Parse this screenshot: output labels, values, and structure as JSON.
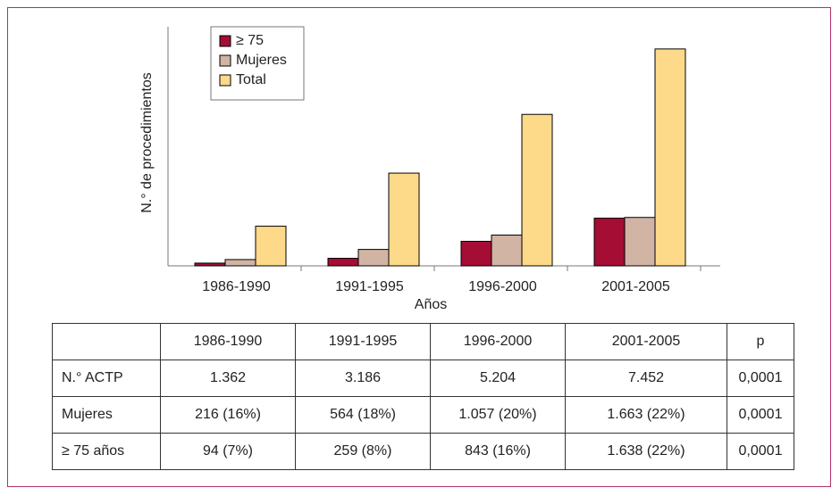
{
  "chart_data": {
    "type": "bar",
    "y_label": "N.° de procedimientos",
    "x_label": "Años",
    "categories": [
      "1986-1990",
      "1991-1995",
      "1996-2000",
      "2001-2005"
    ],
    "series": [
      {
        "name": "≥ 75",
        "color": "#a50d35",
        "values": [
          94,
          259,
          843,
          1638
        ]
      },
      {
        "name": "Mujeres",
        "color": "#d2b4a4",
        "values": [
          216,
          564,
          1057,
          1663
        ]
      },
      {
        "name": "Total",
        "color": "#fdd98a",
        "values": [
          1362,
          3186,
          5204,
          7452
        ]
      }
    ],
    "ylim": [
      0,
      8000
    ],
    "legend": "upper left"
  },
  "table": {
    "header": [
      "1986-1990",
      "1991-1995",
      "1996-2000",
      "2001-2005",
      "p"
    ],
    "rows": [
      {
        "label": "N.° ACTP",
        "cells": [
          "1.362",
          "3.186",
          "5.204",
          "7.452",
          "0,0001"
        ]
      },
      {
        "label": "Mujeres",
        "cells": [
          "216 (16%)",
          "564 (18%)",
          "1.057 (20%)",
          "1.663 (22%)",
          "0,0001"
        ]
      },
      {
        "label": "≥ 75 años",
        "cells": [
          "94 (7%)",
          "259 (8%)",
          "843 (16%)",
          "1.638 (22%)",
          "0,0001"
        ]
      }
    ]
  }
}
